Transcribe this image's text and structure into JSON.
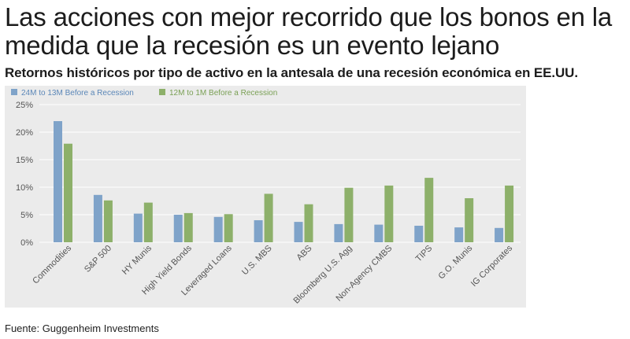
{
  "header": {
    "title": "Las acciones con mejor recorrido que los bonos en la medida que la recesión es un evento lejano",
    "subtitle": "Retornos históricos por tipo de activo en la antesala de una recesión económica en EE.UU."
  },
  "footer": {
    "source": "Fuente: Guggenheim Investments"
  },
  "colors": {
    "series1": "#7fa3c9",
    "series1_text": "#5b87b8",
    "series2": "#8db06a",
    "series2_text": "#7aa055",
    "background": "#ebebeb",
    "grid": "#ffffff"
  },
  "chart_data": {
    "type": "bar",
    "title": "",
    "xlabel": "",
    "ylabel": "",
    "ylim": [
      0,
      25
    ],
    "yticks": [
      0,
      5,
      10,
      15,
      20,
      25
    ],
    "ytick_labels": [
      "0%",
      "5%",
      "10%",
      "15%",
      "20%",
      "25%"
    ],
    "legend_position": "top-left",
    "categories": [
      "Commodities",
      "S&P 500",
      "HY Munis",
      "High Yield Bonds",
      "Leveraged Loans",
      "U.S. MBS",
      "ABS",
      "Bloomberg U.S. Agg",
      "Non-Agency CMBS",
      "TIPS",
      "G.O. Munis",
      "IG Corporates"
    ],
    "series": [
      {
        "name": "24M to 13M Before a Recession",
        "values": [
          22.0,
          8.6,
          5.2,
          5.0,
          4.6,
          4.0,
          3.7,
          3.3,
          3.2,
          3.0,
          2.7,
          2.6
        ]
      },
      {
        "name": "12M to 1M Before a Recession",
        "values": [
          17.9,
          7.6,
          7.2,
          5.3,
          5.1,
          8.8,
          6.9,
          9.9,
          10.3,
          11.7,
          8.0,
          10.3
        ]
      }
    ]
  }
}
